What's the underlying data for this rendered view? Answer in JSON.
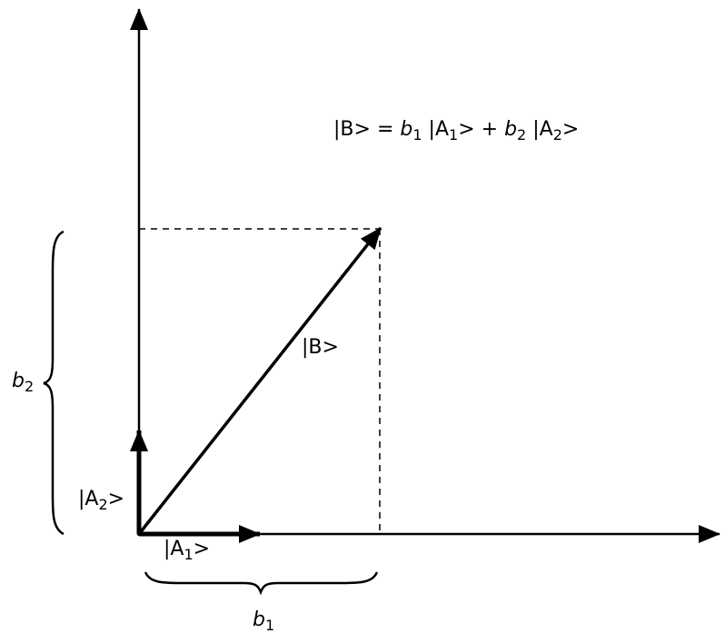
{
  "equation": {
    "lhs": "|B>",
    "equals": "=",
    "coef1": "b",
    "coef1_sub": "1",
    "ket1": "|A",
    "ket1_sub": "1",
    "ket1_close": ">",
    "plus": "+",
    "coef2": "b",
    "coef2_sub": "2",
    "ket2": "|A",
    "ket2_sub": "2",
    "ket2_close": ">"
  },
  "labels": {
    "vector_b": "|B>",
    "a1": {
      "text": "|A",
      "sub": "1",
      "close": ">"
    },
    "a2": {
      "text": "|A",
      "sub": "2",
      "close": ">"
    },
    "b1": {
      "text": "b",
      "sub": "1"
    },
    "b2": {
      "text": "b",
      "sub": "2"
    }
  },
  "colors": {
    "ink": "#000000",
    "background": "#ffffff"
  }
}
